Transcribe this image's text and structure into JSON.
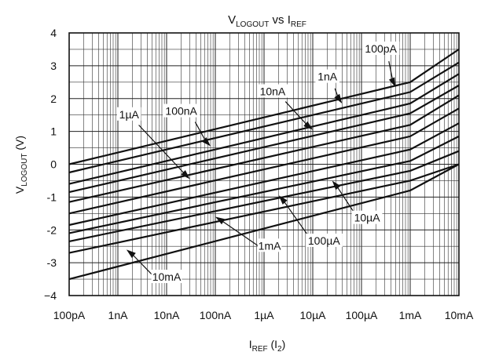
{
  "chart_data": {
    "type": "line",
    "title_main": "V",
    "title_main_sub": "LOGOUT",
    "title_vs": " vs I",
    "title_vs_sub": "REF",
    "ylabel_main": "V",
    "ylabel_sub": "LOGOUT",
    "ylabel_unit": " (V)",
    "xlabel_main": "I",
    "xlabel_sub": "REF",
    "xlabel_rest": " (I",
    "xlabel_rest_sub": "2",
    "xlabel_close": ")",
    "x_scale": "log",
    "x_ticks": [
      {
        "value": 1e-10,
        "label": "100pA"
      },
      {
        "value": 1e-09,
        "label": "1nA"
      },
      {
        "value": 1e-08,
        "label": "10nA"
      },
      {
        "value": 1e-07,
        "label": "100nA"
      },
      {
        "value": 1e-06,
        "label": "1µA"
      },
      {
        "value": 1e-05,
        "label": "10µA"
      },
      {
        "value": 0.0001,
        "label": "100µA"
      },
      {
        "value": 0.001,
        "label": "1mA"
      },
      {
        "value": 0.01,
        "label": "10mA"
      }
    ],
    "y_ticks": [
      {
        "value": 4,
        "label": "4"
      },
      {
        "value": 3,
        "label": "3"
      },
      {
        "value": 2,
        "label": "2"
      },
      {
        "value": 1,
        "label": "1"
      },
      {
        "value": 0,
        "label": "0"
      },
      {
        "value": -1,
        "label": "-1"
      },
      {
        "value": -2,
        "label": "-2"
      },
      {
        "value": -3,
        "label": "-3"
      },
      {
        "value": -4,
        "label": "−4"
      }
    ],
    "xlim": [
      1e-10,
      0.01
    ],
    "ylim": [
      -4,
      4
    ],
    "grid": true,
    "series": [
      {
        "name": "100pA",
        "points": [
          [
            1e-10,
            0.0
          ],
          [
            0.001,
            2.5
          ],
          [
            0.01,
            3.5
          ]
        ]
      },
      {
        "name": "1nA",
        "points": [
          [
            1e-10,
            -0.25
          ],
          [
            0.001,
            2.2
          ],
          [
            0.01,
            3.1
          ]
        ]
      },
      {
        "name": "",
        "points": [
          [
            1e-10,
            -0.6
          ],
          [
            0.001,
            1.85
          ],
          [
            0.01,
            2.75
          ]
        ]
      },
      {
        "name": "10nA",
        "points": [
          [
            1e-10,
            -0.85
          ],
          [
            0.001,
            1.55
          ],
          [
            0.01,
            2.4
          ]
        ]
      },
      {
        "name": "100nA",
        "points": [
          [
            1e-10,
            -1.15
          ],
          [
            0.001,
            1.2
          ],
          [
            0.01,
            2.1
          ]
        ]
      },
      {
        "name": "1µA",
        "points": [
          [
            1e-10,
            -1.5
          ],
          [
            0.001,
            0.85
          ],
          [
            0.01,
            1.7
          ]
        ]
      },
      {
        "name": "",
        "points": [
          [
            1e-10,
            -1.85
          ],
          [
            0.001,
            0.45
          ],
          [
            0.01,
            1.25
          ]
        ]
      },
      {
        "name": "10µA",
        "points": [
          [
            1e-10,
            -2.1
          ],
          [
            0.001,
            0.1
          ],
          [
            0.01,
            0.85
          ]
        ]
      },
      {
        "name": "100µA",
        "points": [
          [
            1e-10,
            -2.35
          ],
          [
            0.001,
            -0.2
          ],
          [
            0.01,
            0.4
          ]
        ]
      },
      {
        "name": "1mA",
        "points": [
          [
            1e-10,
            -2.7
          ],
          [
            0.001,
            -0.5
          ],
          [
            0.01,
            0.0
          ]
        ]
      },
      {
        "name": "10mA",
        "points": [
          [
            1e-10,
            -3.5
          ],
          [
            0.001,
            -0.8
          ],
          [
            0.01,
            0.0
          ]
        ]
      }
    ],
    "annotations": [
      {
        "text": "100pA",
        "tx": 0.00025,
        "ty": 3.45,
        "ax": 0.0005,
        "ay": 2.35
      },
      {
        "text": "1nA",
        "tx": 2e-05,
        "ty": 2.6,
        "ax": 4e-05,
        "ay": 1.85
      },
      {
        "text": "10nA",
        "tx": 1.5e-06,
        "ty": 2.15,
        "ax": 1e-05,
        "ay": 1.05
      },
      {
        "text": "100nA",
        "tx": 2e-08,
        "ty": 1.55,
        "ax": 8e-08,
        "ay": 0.55
      },
      {
        "text": "1µA",
        "tx": 1.7e-09,
        "ty": 1.45,
        "ax": 3e-08,
        "ay": -0.45
      },
      {
        "text": "10µA",
        "tx": 0.00013,
        "ty": -1.7,
        "ax": 2.5e-05,
        "ay": -0.5
      },
      {
        "text": "100µA",
        "tx": 1.7e-05,
        "ty": -2.4,
        "ax": 2e-06,
        "ay": -0.95
      },
      {
        "text": "1mA",
        "tx": 1.3e-06,
        "ty": -2.55,
        "ax": 1e-07,
        "ay": -1.6
      },
      {
        "text": "10mA",
        "tx": 1e-08,
        "ty": -3.5,
        "ax": 1.5e-09,
        "ay": -2.6
      }
    ]
  }
}
